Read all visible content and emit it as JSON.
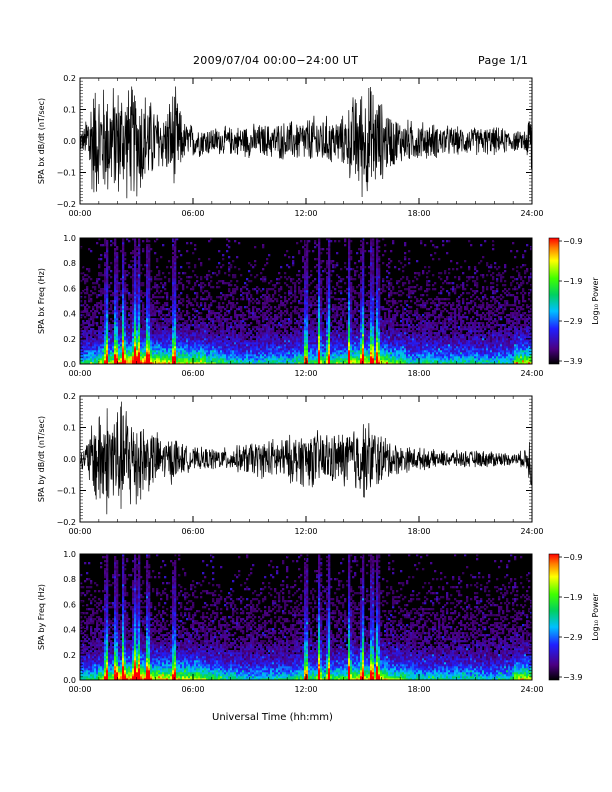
{
  "header": {
    "title": "2009/07/04  00:00−24:00 UT",
    "page": "Page 1/1"
  },
  "x_axis_title": "Universal Time (hh:mm)",
  "chart_data": [
    {
      "type": "line",
      "ylabel": "SPA bx dB/dt (nT/sec)",
      "x_ticks": [
        "00:00",
        "06:00",
        "12:00",
        "18:00",
        "24:00"
      ],
      "y_ticks": [
        "0.2",
        "0.1",
        "0.0",
        "−0.1",
        "−0.2"
      ],
      "xlim_hours": [
        0,
        24
      ],
      "ylim": [
        -0.2,
        0.2
      ],
      "envelope": {
        "hours": [
          0,
          0.25,
          0.5,
          1,
          1.5,
          2,
          2.5,
          3,
          3.5,
          4,
          4.5,
          5,
          5.5,
          6,
          7,
          8,
          9,
          10,
          11,
          12,
          12.5,
          13,
          13.5,
          14,
          14.5,
          15,
          15.5,
          16,
          16.5,
          17,
          18,
          19,
          20,
          21,
          22,
          23,
          23.5,
          23.8,
          24
        ],
        "amplitude_nT_per_sec": [
          0.04,
          0.05,
          0.2,
          0.2,
          0.2,
          0.2,
          0.2,
          0.2,
          0.18,
          0.12,
          0.1,
          0.2,
          0.07,
          0.06,
          0.05,
          0.05,
          0.06,
          0.06,
          0.07,
          0.08,
          0.09,
          0.09,
          0.08,
          0.09,
          0.16,
          0.2,
          0.2,
          0.14,
          0.1,
          0.08,
          0.07,
          0.06,
          0.05,
          0.05,
          0.05,
          0.04,
          0.03,
          0.08,
          0.2
        ]
      }
    },
    {
      "type": "heatmap",
      "ylabel": "SPA bx Freq (Hz)",
      "x_ticks": [
        "00:00",
        "06:00",
        "12:00",
        "18:00",
        "24:00"
      ],
      "y_ticks": [
        "1.0",
        "0.8",
        "0.6",
        "0.4",
        "0.2",
        "0.0"
      ],
      "ylim": [
        0,
        1.0
      ],
      "colorbar": {
        "label": "Log₁₀ Power",
        "ticks": [
          "−0.9",
          "−1.9",
          "−2.9",
          "−3.9"
        ],
        "range": [
          -3.9,
          -0.9
        ]
      },
      "bright_bursts_hours": [
        1.4,
        1.9,
        2.3,
        2.9,
        3.1,
        3.6,
        5.0,
        12.0,
        12.7,
        13.2,
        14.3,
        15.0,
        15.5,
        15.8
      ],
      "low_freq_power_profile": [
        0.5,
        0.7,
        0.9,
        0.95,
        0.8,
        0.75,
        0.7,
        0.55,
        0.45,
        0.4,
        0.45,
        0.45,
        0.55,
        0.55,
        0.6,
        0.75,
        0.75,
        0.6,
        0.45,
        0.45,
        0.45,
        0.45,
        0.4,
        0.45,
        0.75
      ]
    },
    {
      "type": "line",
      "ylabel": "SPA by dB/dt (nT/sec)",
      "x_ticks": [
        "00:00",
        "06:00",
        "12:00",
        "18:00",
        "24:00"
      ],
      "y_ticks": [
        "0.2",
        "0.1",
        "0.0",
        "−0.1",
        "−0.2"
      ],
      "xlim_hours": [
        0,
        24
      ],
      "ylim": [
        -0.2,
        0.2
      ],
      "envelope": {
        "hours": [
          0,
          0.25,
          0.5,
          1,
          1.5,
          2,
          2.5,
          3,
          3.5,
          4,
          4.5,
          5,
          5.5,
          6,
          7,
          8,
          9,
          10,
          11,
          12,
          12.5,
          13,
          13.5,
          14,
          14.5,
          15,
          15.5,
          16,
          16.5,
          17,
          18,
          19,
          20,
          21,
          22,
          23,
          23.5,
          23.8,
          24
        ],
        "amplitude_nT_per_sec": [
          0.03,
          0.04,
          0.1,
          0.2,
          0.2,
          0.2,
          0.2,
          0.18,
          0.12,
          0.1,
          0.07,
          0.09,
          0.05,
          0.04,
          0.04,
          0.04,
          0.06,
          0.07,
          0.08,
          0.1,
          0.1,
          0.1,
          0.09,
          0.1,
          0.12,
          0.14,
          0.13,
          0.09,
          0.07,
          0.05,
          0.04,
          0.03,
          0.03,
          0.03,
          0.03,
          0.02,
          0.03,
          0.06,
          0.15
        ]
      }
    },
    {
      "type": "heatmap",
      "ylabel": "SPA by Freq (Hz)",
      "x_ticks": [
        "00:00",
        "06:00",
        "12:00",
        "18:00",
        "24:00"
      ],
      "y_ticks": [
        "1.0",
        "0.8",
        "0.6",
        "0.4",
        "0.2",
        "0.0"
      ],
      "ylim": [
        0,
        1.0
      ],
      "colorbar": {
        "label": "Log₁₀ Power",
        "ticks": [
          "−0.9",
          "−1.9",
          "−2.9",
          "−3.9"
        ],
        "range": [
          -3.9,
          -0.9
        ]
      },
      "bright_bursts_hours": [
        1.4,
        1.9,
        2.3,
        2.9,
        3.1,
        3.6,
        5.0,
        12.0,
        12.7,
        13.2,
        14.3,
        15.0,
        15.5,
        15.8
      ],
      "low_freq_power_profile": [
        0.5,
        0.7,
        0.9,
        0.95,
        0.8,
        0.75,
        0.7,
        0.55,
        0.45,
        0.4,
        0.45,
        0.45,
        0.55,
        0.55,
        0.6,
        0.75,
        0.75,
        0.6,
        0.45,
        0.45,
        0.45,
        0.45,
        0.4,
        0.45,
        0.75
      ]
    }
  ]
}
